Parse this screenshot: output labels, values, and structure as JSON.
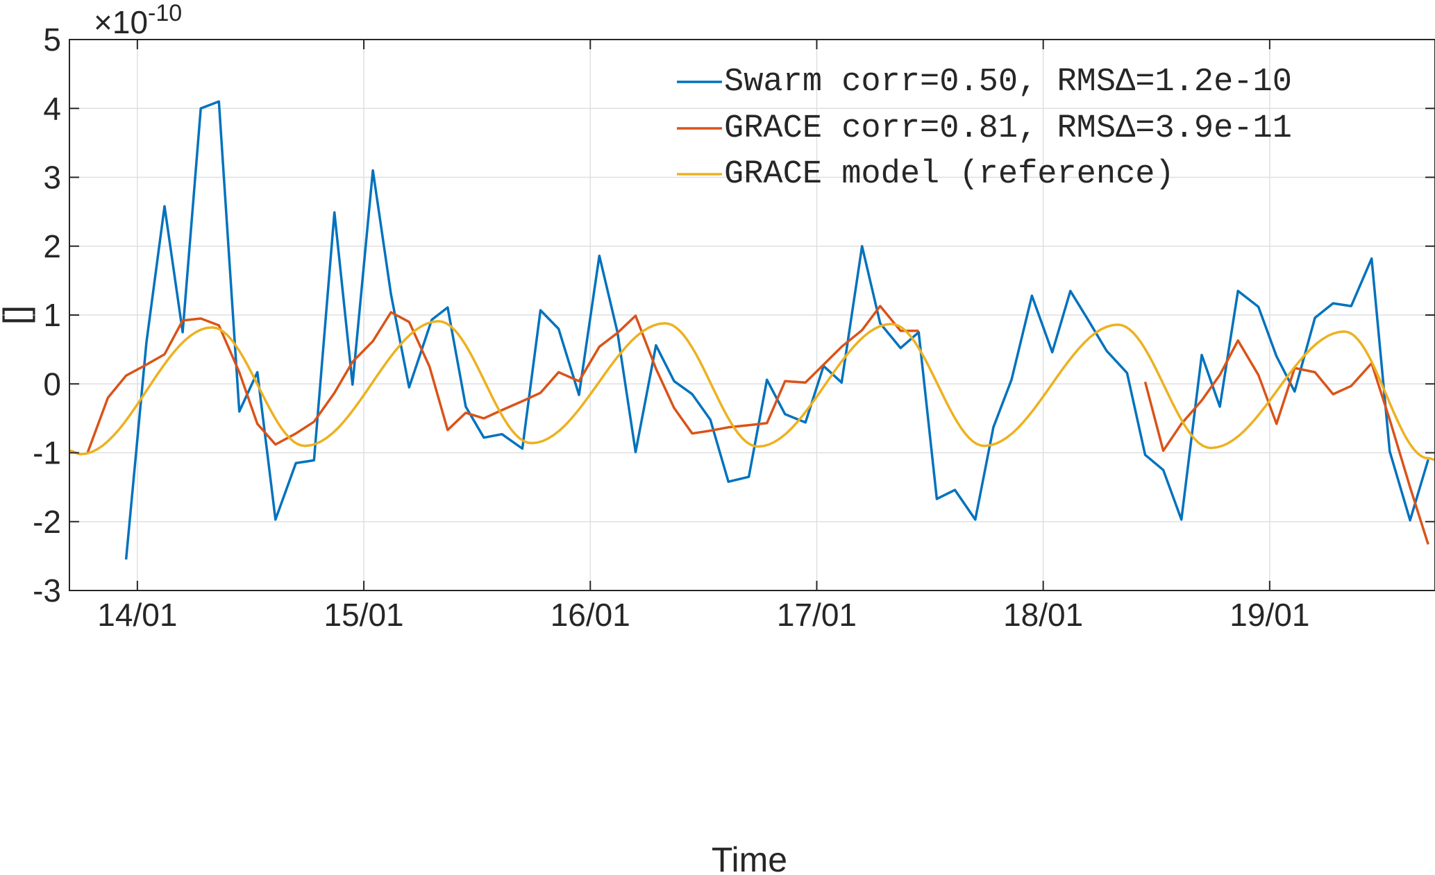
{
  "chart_data": {
    "type": "line",
    "title": "",
    "xlabel": "Time",
    "ylabel": "[]",
    "y_exponent_label": "×10",
    "y_exponent_power": "-10",
    "xlim": [
      13.7,
      19.73
    ],
    "ylim": [
      -3,
      5
    ],
    "x_ticks": [
      14,
      15,
      16,
      17,
      18,
      19
    ],
    "x_tick_labels": [
      "14/01",
      "15/01",
      "16/01",
      "17/01",
      "18/01",
      "19/01"
    ],
    "y_ticks": [
      -3,
      -2,
      -1,
      0,
      1,
      2,
      3,
      4,
      5
    ],
    "y_tick_labels": [
      "-3",
      "-2",
      "-1",
      "0",
      "1",
      "2",
      "3",
      "4",
      "5"
    ],
    "grid": true,
    "legend_position": "top-right",
    "series": [
      {
        "name": "Swarm corr=0.50, RMSΔ=1.2e-10",
        "color": "#0072BD",
        "points": [
          [
            13.95,
            -2.55
          ],
          [
            14.04,
            0.6
          ],
          [
            14.12,
            2.58
          ],
          [
            14.2,
            0.75
          ],
          [
            14.28,
            4.0
          ],
          [
            14.36,
            4.1
          ],
          [
            14.45,
            -0.4
          ],
          [
            14.53,
            0.17
          ],
          [
            14.61,
            -1.97
          ],
          [
            14.7,
            -1.15
          ],
          [
            14.78,
            -1.11
          ],
          [
            14.87,
            2.49
          ],
          [
            14.95,
            -0.01
          ],
          [
            15.04,
            3.1
          ],
          [
            15.12,
            1.3
          ],
          [
            15.2,
            -0.05
          ],
          [
            15.3,
            0.93
          ],
          [
            15.37,
            1.11
          ],
          [
            15.45,
            -0.33
          ],
          [
            15.53,
            -0.78
          ],
          [
            15.61,
            -0.73
          ],
          [
            15.7,
            -0.94
          ],
          [
            15.78,
            1.07
          ],
          [
            15.86,
            0.8
          ],
          [
            15.95,
            -0.16
          ],
          [
            16.04,
            1.86
          ],
          [
            16.12,
            0.75
          ],
          [
            16.2,
            -0.99
          ],
          [
            16.29,
            0.56
          ],
          [
            16.37,
            0.04
          ],
          [
            16.45,
            -0.15
          ],
          [
            16.53,
            -0.52
          ],
          [
            16.61,
            -1.42
          ],
          [
            16.7,
            -1.35
          ],
          [
            16.78,
            0.06
          ],
          [
            16.86,
            -0.44
          ],
          [
            16.95,
            -0.56
          ],
          [
            17.03,
            0.26
          ],
          [
            17.11,
            0.02
          ],
          [
            17.2,
            2.0
          ],
          [
            17.28,
            0.88
          ],
          [
            17.37,
            0.52
          ],
          [
            17.45,
            0.75
          ],
          [
            17.53,
            -1.67
          ],
          [
            17.61,
            -1.54
          ],
          [
            17.7,
            -1.97
          ],
          [
            17.78,
            -0.63
          ],
          [
            17.86,
            0.06
          ],
          [
            17.95,
            1.28
          ],
          [
            18.04,
            0.46
          ],
          [
            18.12,
            1.35
          ],
          [
            18.2,
            0.92
          ],
          [
            18.28,
            0.48
          ],
          [
            18.37,
            0.16
          ],
          [
            18.45,
            -1.03
          ],
          [
            18.53,
            -1.25
          ],
          [
            18.61,
            -1.97
          ],
          [
            18.7,
            0.42
          ],
          [
            18.78,
            -0.33
          ],
          [
            18.86,
            1.35
          ],
          [
            18.95,
            1.12
          ],
          [
            19.03,
            0.4
          ],
          [
            19.11,
            -0.11
          ],
          [
            19.2,
            0.96
          ],
          [
            19.28,
            1.17
          ],
          [
            19.36,
            1.13
          ],
          [
            19.45,
            1.82
          ],
          [
            19.53,
            -0.98
          ],
          [
            19.62,
            -1.98
          ],
          [
            19.7,
            -1.1
          ]
        ]
      },
      {
        "name": "GRACE corr=0.81, RMSΔ=3.9e-11",
        "color": "#D95319",
        "segments": [
          [
            [
              13.78,
              -1.0
            ],
            [
              13.87,
              -0.2
            ],
            [
              13.95,
              0.12
            ],
            [
              14.04,
              0.28
            ],
            [
              14.12,
              0.43
            ],
            [
              14.2,
              0.92
            ],
            [
              14.28,
              0.95
            ],
            [
              14.36,
              0.85
            ],
            [
              14.45,
              0.17
            ],
            [
              14.53,
              -0.58
            ],
            [
              14.61,
              -0.88
            ],
            [
              14.7,
              -0.72
            ],
            [
              14.78,
              -0.55
            ],
            [
              14.87,
              -0.13
            ],
            [
              14.95,
              0.32
            ],
            [
              15.04,
              0.62
            ],
            [
              15.12,
              1.04
            ],
            [
              15.2,
              0.9
            ],
            [
              15.29,
              0.25
            ],
            [
              15.37,
              -0.67
            ],
            [
              15.45,
              -0.42
            ],
            [
              15.53,
              -0.5
            ],
            [
              15.61,
              -0.38
            ],
            [
              15.7,
              -0.25
            ],
            [
              15.78,
              -0.13
            ],
            [
              15.86,
              0.17
            ],
            [
              15.95,
              0.04
            ],
            [
              16.04,
              0.54
            ],
            [
              16.12,
              0.74
            ],
            [
              16.2,
              0.99
            ],
            [
              16.29,
              0.22
            ],
            [
              16.37,
              -0.35
            ],
            [
              16.45,
              -0.72
            ],
            [
              16.53,
              -0.68
            ],
            [
              16.61,
              -0.63
            ],
            [
              16.7,
              -0.6
            ],
            [
              16.78,
              -0.57
            ],
            [
              16.86,
              0.04
            ],
            [
              16.95,
              0.02
            ],
            [
              17.03,
              0.28
            ],
            [
              17.11,
              0.54
            ],
            [
              17.2,
              0.78
            ],
            [
              17.28,
              1.13
            ],
            [
              17.37,
              0.77
            ],
            [
              17.45,
              0.77
            ]
          ],
          [
            [
              18.45,
              0.03
            ],
            [
              18.53,
              -0.97
            ],
            [
              18.61,
              -0.58
            ],
            [
              18.7,
              -0.24
            ],
            [
              18.78,
              0.13
            ],
            [
              18.86,
              0.63
            ],
            [
              18.95,
              0.13
            ],
            [
              19.03,
              -0.58
            ],
            [
              19.11,
              0.23
            ],
            [
              19.2,
              0.17
            ],
            [
              19.28,
              -0.15
            ],
            [
              19.36,
              -0.03
            ],
            [
              19.45,
              0.3
            ],
            [
              19.53,
              -0.52
            ],
            [
              19.62,
              -1.5
            ],
            [
              19.7,
              -2.33
            ]
          ]
        ]
      },
      {
        "name": "GRACE model (reference)",
        "color": "#EDB120",
        "extrema": [
          [
            13.7,
            -0.97
          ],
          [
            13.75,
            -1.02
          ],
          [
            14.33,
            0.82
          ],
          [
            14.74,
            -0.9
          ],
          [
            15.33,
            0.91
          ],
          [
            15.74,
            -0.86
          ],
          [
            16.33,
            0.88
          ],
          [
            16.74,
            -0.91
          ],
          [
            17.33,
            0.87
          ],
          [
            17.74,
            -0.9
          ],
          [
            18.33,
            0.86
          ],
          [
            18.74,
            -0.93
          ],
          [
            19.33,
            0.76
          ],
          [
            19.7,
            -1.08
          ],
          [
            19.73,
            -1.1
          ]
        ]
      }
    ]
  }
}
